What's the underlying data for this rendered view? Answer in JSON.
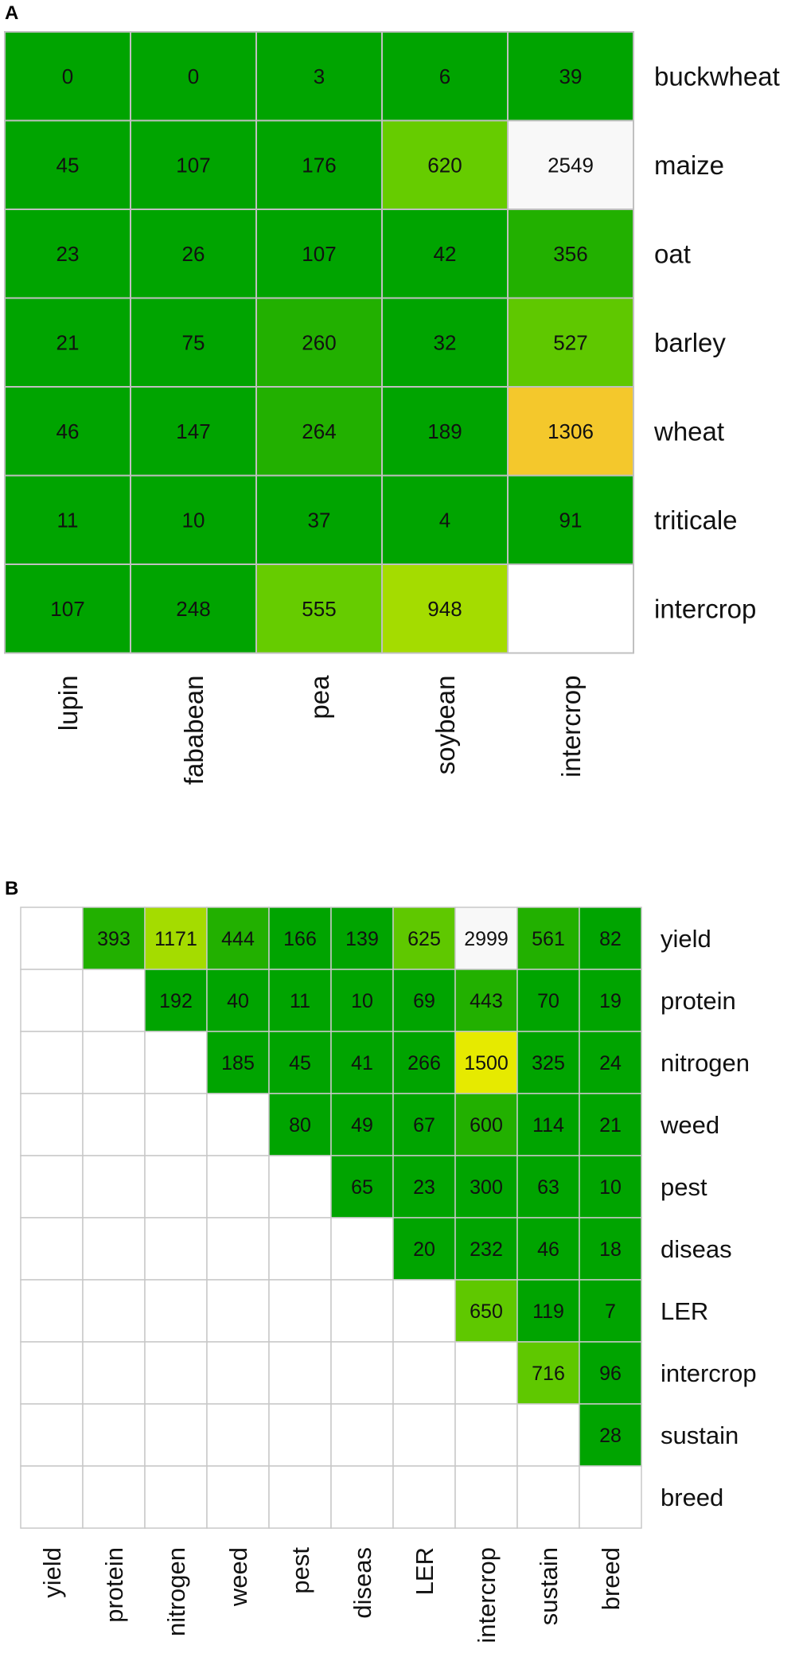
{
  "panel_a": {
    "label": "A"
  },
  "panel_b": {
    "label": "B"
  },
  "chart_data": [
    {
      "type": "heatmap",
      "title": "",
      "columns": [
        "lupin",
        "fababean",
        "pea",
        "soybean",
        "intercrop"
      ],
      "rows": [
        "buckwheat",
        "maize",
        "oat",
        "barley",
        "wheat",
        "triticale",
        "intercrop"
      ],
      "values": [
        [
          0,
          0,
          3,
          6,
          39
        ],
        [
          45,
          107,
          176,
          620,
          2549
        ],
        [
          23,
          26,
          107,
          42,
          356
        ],
        [
          21,
          75,
          260,
          32,
          527
        ],
        [
          46,
          147,
          264,
          189,
          1306
        ],
        [
          11,
          10,
          37,
          4,
          91
        ],
        [
          107,
          248,
          555,
          948,
          null
        ]
      ],
      "colors": [
        [
          "#00a400",
          "#00a400",
          "#00a400",
          "#00a400",
          "#00a400"
        ],
        [
          "#00a400",
          "#00a400",
          "#00a400",
          "#66cc00",
          "#f8f8f8"
        ],
        [
          "#00a400",
          "#00a400",
          "#00a400",
          "#00a400",
          "#22b000"
        ],
        [
          "#00a400",
          "#00a400",
          "#22b000",
          "#00a400",
          "#5fc800"
        ],
        [
          "#00a400",
          "#00a400",
          "#22b000",
          "#00a400",
          "#f4c82c"
        ],
        [
          "#00a400",
          "#00a400",
          "#00a400",
          "#00a400",
          "#00a400"
        ],
        [
          "#00a400",
          "#00a400",
          "#66cc00",
          "#a4dc00",
          "#ffffff"
        ]
      ]
    },
    {
      "type": "heatmap",
      "title": "",
      "columns": [
        "yield",
        "protein",
        "nitrogen",
        "weed",
        "pest",
        "diseas",
        "LER",
        "intercrop",
        "sustain",
        "breed"
      ],
      "rows": [
        "yield",
        "protein",
        "nitrogen",
        "weed",
        "pest",
        "diseas",
        "LER",
        "intercrop",
        "sustain",
        "breed"
      ],
      "values": [
        [
          null,
          393,
          1171,
          444,
          166,
          139,
          625,
          2999,
          561,
          82
        ],
        [
          null,
          null,
          192,
          40,
          11,
          10,
          69,
          443,
          70,
          19
        ],
        [
          null,
          null,
          null,
          185,
          45,
          41,
          266,
          1500,
          325,
          24
        ],
        [
          null,
          null,
          null,
          null,
          80,
          49,
          67,
          600,
          114,
          21
        ],
        [
          null,
          null,
          null,
          null,
          null,
          65,
          23,
          300,
          63,
          10
        ],
        [
          null,
          null,
          null,
          null,
          null,
          null,
          20,
          232,
          46,
          18
        ],
        [
          null,
          null,
          null,
          null,
          null,
          null,
          null,
          650,
          119,
          7
        ],
        [
          null,
          null,
          null,
          null,
          null,
          null,
          null,
          null,
          716,
          96
        ],
        [
          null,
          null,
          null,
          null,
          null,
          null,
          null,
          null,
          null,
          28
        ],
        [
          null,
          null,
          null,
          null,
          null,
          null,
          null,
          null,
          null,
          null
        ]
      ],
      "colors": [
        [
          null,
          "#22b000",
          "#a4dc00",
          "#22b000",
          "#00a400",
          "#00a400",
          "#5fc800",
          "#f8f8f8",
          "#22b000",
          "#00a400"
        ],
        [
          null,
          null,
          "#00a400",
          "#00a400",
          "#00a400",
          "#00a400",
          "#00a400",
          "#22b000",
          "#00a400",
          "#00a400"
        ],
        [
          null,
          null,
          null,
          "#00a400",
          "#00a400",
          "#00a400",
          "#00a400",
          "#e6ea00",
          "#00a400",
          "#00a400"
        ],
        [
          null,
          null,
          null,
          null,
          "#00a400",
          "#00a400",
          "#00a400",
          "#22b000",
          "#00a400",
          "#00a400"
        ],
        [
          null,
          null,
          null,
          null,
          null,
          "#00a400",
          "#00a400",
          "#00a400",
          "#00a400",
          "#00a400"
        ],
        [
          null,
          null,
          null,
          null,
          null,
          null,
          "#00a400",
          "#00a400",
          "#00a400",
          "#00a400"
        ],
        [
          null,
          null,
          null,
          null,
          null,
          null,
          null,
          "#5fc800",
          "#00a400",
          "#00a400"
        ],
        [
          null,
          null,
          null,
          null,
          null,
          null,
          null,
          null,
          "#5fc800",
          "#00a400"
        ],
        [
          null,
          null,
          null,
          null,
          null,
          null,
          null,
          null,
          null,
          "#00a400"
        ],
        [
          null,
          null,
          null,
          null,
          null,
          null,
          null,
          null,
          null,
          null
        ]
      ]
    }
  ]
}
